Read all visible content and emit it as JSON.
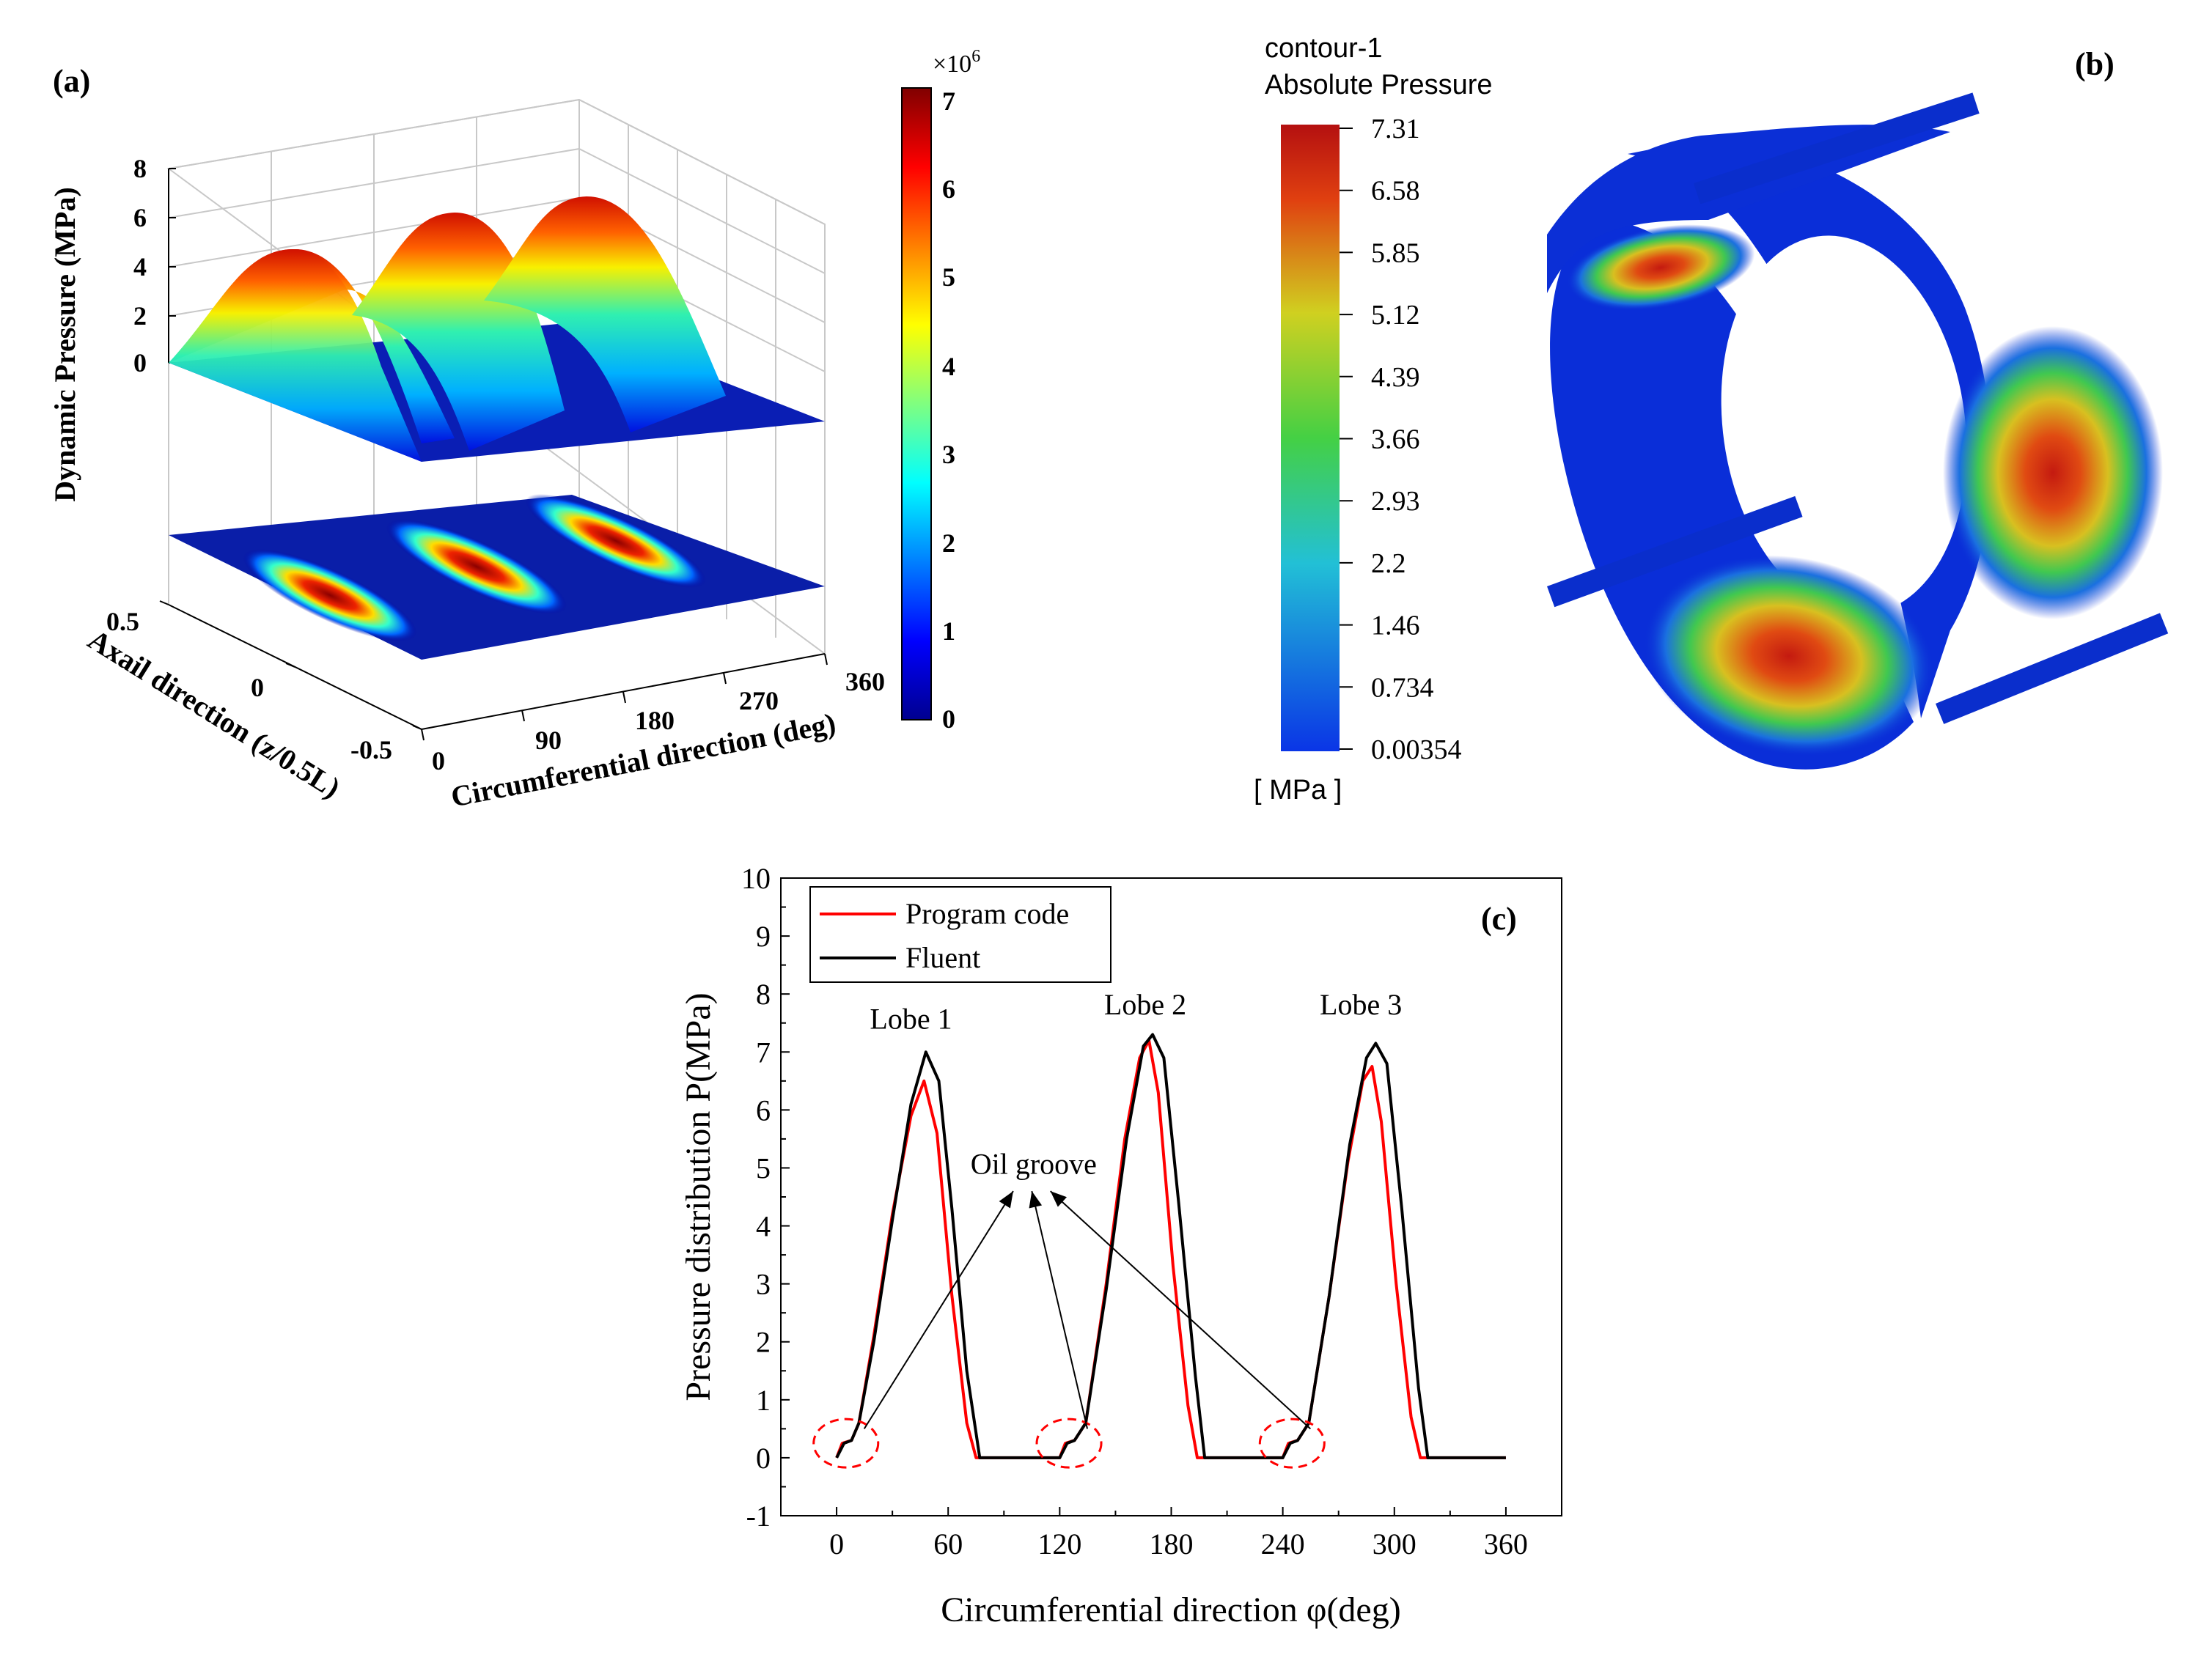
{
  "panel_a": {
    "label": "(a)",
    "zlabel": "Dynamic Pressure  (MPa)",
    "zticks": [
      "8",
      "6",
      "4",
      "2",
      "0"
    ],
    "ylabel": "Axail direction (z/0.5L)",
    "yticks": [
      "0.5",
      "0",
      "-0.5"
    ],
    "xlabel": "Circumferential direction (deg)",
    "xticks": [
      "0",
      "90",
      "180",
      "270",
      "360"
    ],
    "colorbar": {
      "exponent_base": "×10",
      "exponent_power": "6",
      "ticks": [
        "7",
        "6",
        "5",
        "4",
        "3",
        "2",
        "1",
        "0"
      ]
    }
  },
  "panel_b": {
    "label": "(b)",
    "title_line1": "contour-1",
    "title_line2": "Absolute Pressure",
    "unit": "[ MPa ]",
    "levels": [
      "7.31",
      "6.58",
      "5.85",
      "5.12",
      "4.39",
      "3.66",
      "2.93",
      "2.2",
      "1.46",
      "0.734",
      "0.00354"
    ]
  },
  "chart_data": {
    "type": "line",
    "panel_label": "(c)",
    "title": "",
    "xlabel": "Circumferential direction φ(deg)",
    "ylabel": "Pressure distribution P(MPa)",
    "xlim": [
      -30,
      390
    ],
    "ylim": [
      -1,
      10
    ],
    "xticks": [
      "0",
      "60",
      "120",
      "180",
      "240",
      "300",
      "360"
    ],
    "xtick_values": [
      0,
      60,
      120,
      180,
      240,
      300,
      360
    ],
    "yticks": [
      "-1",
      "0",
      "1",
      "2",
      "3",
      "4",
      "5",
      "6",
      "7",
      "8",
      "9",
      "10"
    ],
    "ytick_values": [
      -1,
      0,
      1,
      2,
      3,
      4,
      5,
      6,
      7,
      8,
      9,
      10
    ],
    "legend_position": "top-left",
    "series": [
      {
        "name": "Program code",
        "color": "#ff0000",
        "x": [
          0,
          3,
          8,
          12,
          20,
          30,
          40,
          47,
          54,
          62,
          70,
          75,
          78,
          120,
          123,
          128,
          134,
          145,
          155,
          163,
          168,
          173,
          181,
          189,
          194,
          197,
          240,
          243,
          248,
          254,
          265,
          275,
          283,
          288,
          293,
          301,
          309,
          314,
          317,
          360
        ],
        "y": [
          0,
          0.25,
          0.3,
          0.6,
          2.1,
          4.2,
          5.9,
          6.5,
          5.6,
          2.8,
          0.6,
          0,
          0,
          0,
          0.25,
          0.3,
          0.6,
          3.0,
          5.5,
          6.9,
          7.2,
          6.3,
          3.3,
          0.9,
          0,
          0,
          0,
          0.25,
          0.3,
          0.6,
          2.8,
          5.1,
          6.5,
          6.75,
          5.8,
          3.0,
          0.7,
          0,
          0,
          0
        ]
      },
      {
        "name": "Fluent",
        "color": "#000000",
        "x": [
          0,
          4,
          8,
          12,
          20,
          30,
          40,
          48,
          55,
          62,
          70,
          77,
          80,
          120,
          124,
          128,
          134,
          145,
          156,
          165,
          170,
          176,
          184,
          193,
          198,
          201,
          240,
          244,
          248,
          254,
          265,
          276,
          285,
          290,
          296,
          304,
          313,
          318,
          321,
          360
        ],
        "y": [
          0,
          0.25,
          0.3,
          0.6,
          2.0,
          4.1,
          6.1,
          7.0,
          6.5,
          4.3,
          1.5,
          0,
          0,
          0,
          0.25,
          0.3,
          0.6,
          2.9,
          5.5,
          7.1,
          7.3,
          6.9,
          4.4,
          1.4,
          0,
          0,
          0,
          0.25,
          0.3,
          0.6,
          2.8,
          5.4,
          6.9,
          7.15,
          6.8,
          4.3,
          1.2,
          0,
          0,
          0
        ]
      }
    ],
    "annotations": [
      {
        "text": "Lobe 1",
        "x": 40,
        "y": 7.4
      },
      {
        "text": "Lobe 2",
        "x": 166,
        "y": 7.65
      },
      {
        "text": "Lobe 3",
        "x": 282,
        "y": 7.65
      },
      {
        "text": "Oil groove",
        "x": 106,
        "y": 4.9
      }
    ],
    "groove_markers": [
      5,
      125,
      245
    ],
    "arrow_tip": [
      [
        95,
        4.6
      ],
      [
        105,
        4.6
      ],
      [
        115,
        4.6
      ]
    ]
  }
}
